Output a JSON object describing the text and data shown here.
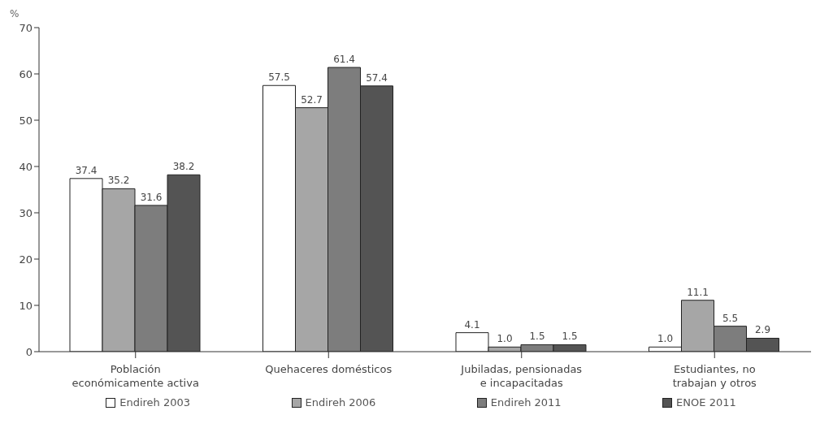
{
  "chart_data": {
    "type": "bar",
    "ylabel": "%",
    "categories": [
      "Población económicamente activa",
      "Quehaceres domésticos",
      "Jubiladas, pensionadas e incapacitadas",
      "Estudiantes, no trabajan y otros"
    ],
    "series": [
      {
        "name": "Endireh 2003",
        "color": "#ffffff",
        "values": [
          37.4,
          57.5,
          4.1,
          1
        ],
        "value_labels": [
          "37.4",
          "57.5",
          "4.1",
          "1.0"
        ]
      },
      {
        "name": "Endireh 2006",
        "color": "#a6a6a6",
        "values": [
          35.2,
          52.7,
          1,
          11.1
        ],
        "value_labels": [
          "35.2",
          "52.7",
          "1.0",
          "11.1"
        ]
      },
      {
        "name": "Endireh 2011",
        "color": "#7d7d7d",
        "values": [
          31.6,
          61.4,
          1.5,
          5.5
        ],
        "value_labels": [
          "31.6",
          "61.4",
          "1.5",
          "5.5"
        ]
      },
      {
        "name": "ENOE 2011",
        "color": "#545454",
        "values": [
          38.2,
          57.4,
          1.5,
          2.9
        ],
        "value_labels": [
          "38.2",
          "57.4",
          "1.5",
          "2.9"
        ]
      }
    ],
    "ylim": [
      0,
      70
    ],
    "yticks": [
      0,
      10,
      20,
      30,
      40,
      50,
      60,
      70
    ],
    "legend": "bottom"
  }
}
